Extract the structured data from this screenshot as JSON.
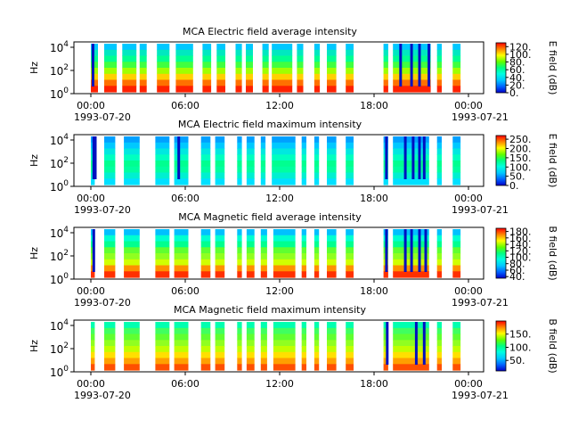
{
  "chart_data": [
    {
      "type": "heatmap",
      "title": "MCA  Electric field average intensity",
      "ylabel": "Hz",
      "y_scale": "log",
      "yticks": [
        "10^4",
        "10^2",
        "10^0"
      ],
      "xticks": [
        "00:00",
        "06:00",
        "12:00",
        "18:00",
        "00:00"
      ],
      "x_date_labels": [
        "1993-07-20",
        "1993-07-21"
      ],
      "colorbar": {
        "label": "E field (dB)",
        "ticks": [
          "120.",
          "100.",
          "80.",
          "60.",
          "40.",
          "20.",
          "0."
        ],
        "range": [
          0,
          130
        ]
      },
      "x_range": [
        "1993-07-20 00:00",
        "1993-07-21 00:00"
      ]
    },
    {
      "type": "heatmap",
      "title": "MCA  Electric field maximum intensity",
      "ylabel": "Hz",
      "y_scale": "log",
      "yticks": [
        "10^4",
        "10^2",
        "10^0"
      ],
      "xticks": [
        "00:00",
        "06:00",
        "12:00",
        "18:00",
        "00:00"
      ],
      "x_date_labels": [
        "1993-07-20",
        "1993-07-21"
      ],
      "colorbar": {
        "label": "E field (dB)",
        "ticks": [
          "250.",
          "200.",
          "150.",
          "100.",
          "50.",
          "0."
        ],
        "range": [
          0,
          270
        ]
      },
      "x_range": [
        "1993-07-20 00:00",
        "1993-07-21 00:00"
      ]
    },
    {
      "type": "heatmap",
      "title": "MCA  Magnetic field average intensity",
      "ylabel": "Hz",
      "y_scale": "log",
      "yticks": [
        "10^4",
        "10^2",
        "10^0"
      ],
      "xticks": [
        "00:00",
        "06:00",
        "12:00",
        "18:00",
        "00:00"
      ],
      "x_date_labels": [
        "1993-07-20",
        "1993-07-21"
      ],
      "colorbar": {
        "label": "B field (dB)",
        "ticks": [
          "180.",
          "160.",
          "140.",
          "120.",
          "100.",
          "80.",
          "60.",
          "40."
        ],
        "range": [
          35,
          190
        ]
      },
      "x_range": [
        "1993-07-20 00:00",
        "1993-07-21 00:00"
      ]
    },
    {
      "type": "heatmap",
      "title": "MCA  Magnetic field maximum intensity",
      "ylabel": "Hz",
      "y_scale": "log",
      "yticks": [
        "10^4",
        "10^2",
        "10^0"
      ],
      "xticks": [
        "00:00",
        "06:00",
        "12:00",
        "18:00",
        "00:00"
      ],
      "x_date_labels": [
        "1993-07-20",
        "1993-07-21"
      ],
      "colorbar": {
        "label": "B field (dB)",
        "ticks": [
          "150.",
          "100.",
          "50."
        ],
        "range": [
          10,
          200
        ]
      },
      "x_range": [
        "1993-07-20 00:00",
        "1993-07-21 00:00"
      ]
    }
  ]
}
